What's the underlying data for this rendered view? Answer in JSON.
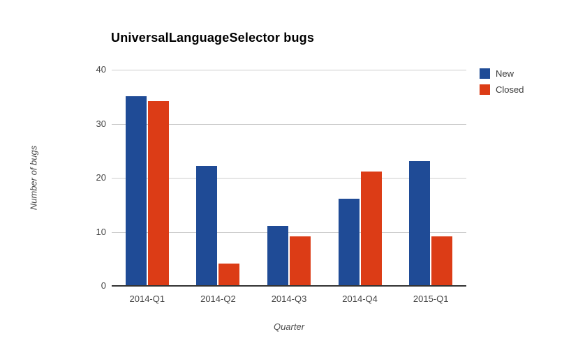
{
  "title": "UniversalLanguageSelector bugs",
  "chart_data": {
    "type": "bar",
    "categories": [
      "2014-Q1",
      "2014-Q2",
      "2014-Q3",
      "2014-Q4",
      "2015-Q1"
    ],
    "series": [
      {
        "name": "New",
        "color": "#1f4b96",
        "values": [
          35,
          22,
          11,
          16,
          23
        ]
      },
      {
        "name": "Closed",
        "color": "#dc3c16",
        "values": [
          34,
          4,
          9,
          21,
          9
        ]
      }
    ],
    "title": "UniversalLanguageSelector bugs",
    "xlabel": "Quarter",
    "ylabel": "Number of bugs",
    "ylim": [
      0,
      40
    ],
    "yticks": [
      0,
      10,
      20,
      30,
      40
    ],
    "grid": true,
    "legend_position": "top-right"
  },
  "colors": {
    "gridline": "#cccccc",
    "axis_line": "#333333",
    "tick_text": "#444444",
    "title_text": "#000000"
  }
}
